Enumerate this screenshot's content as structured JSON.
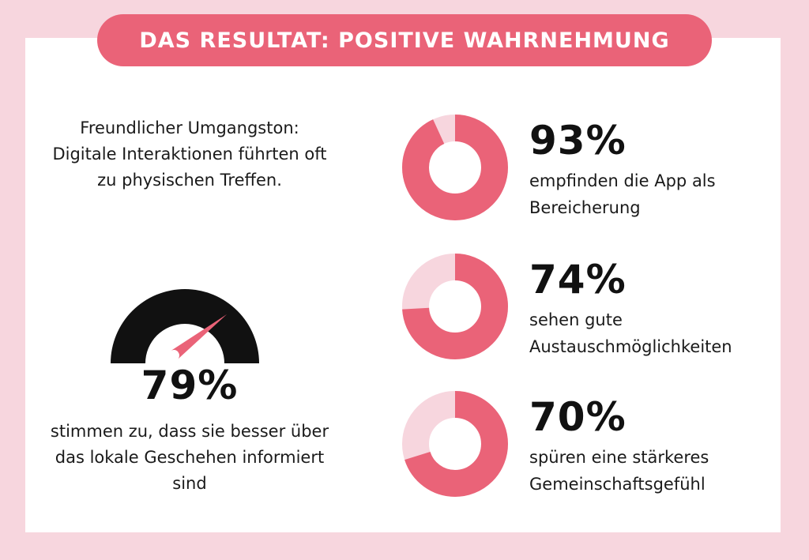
{
  "title": "DAS RESULTAT: POSITIVE WAHRNEHMUNG",
  "intro": "Freundlicher Umgangston: Digitale Interaktionen führten oft zu physischen Treffen.",
  "colors": {
    "accent": "#ea6378",
    "track": "#f7d6de",
    "background": "#f7d6de",
    "card": "#ffffff",
    "gauge": "#111111"
  },
  "chart_data": [
    {
      "type": "gauge",
      "value": 79,
      "unit": "%",
      "label": "79%",
      "description": "stimmen zu, dass sie besser über das lokale Geschehen informiert sind"
    },
    {
      "type": "pie",
      "value": 93,
      "unit": "%",
      "label": "93%",
      "description": "empfinden die App als Bereicherung"
    },
    {
      "type": "pie",
      "value": 74,
      "unit": "%",
      "label": "74%",
      "description": "sehen gute Austauschmöglichkeiten"
    },
    {
      "type": "pie",
      "value": 70,
      "unit": "%",
      "label": "70%",
      "description": "spüren eine stärkeres Gemeinschaftsgefühl"
    }
  ]
}
